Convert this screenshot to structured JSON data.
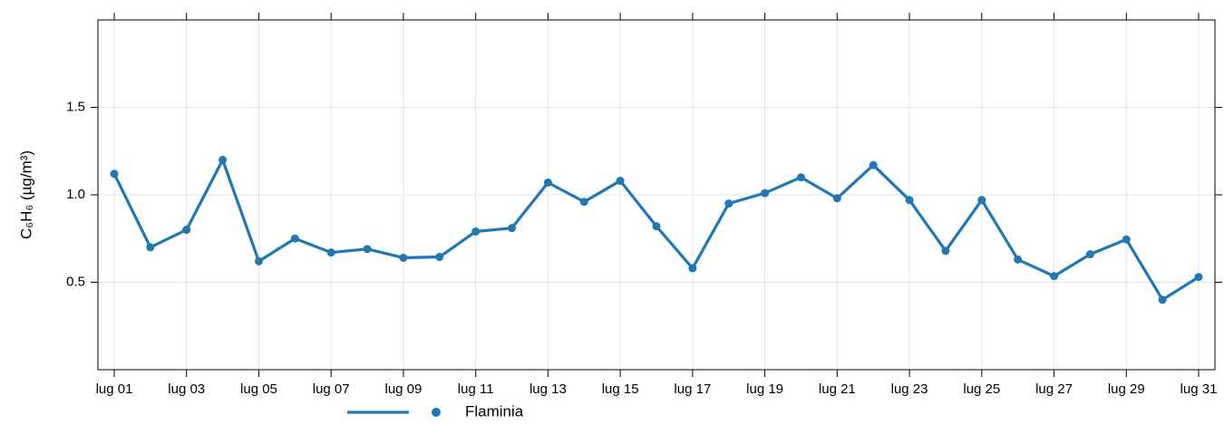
{
  "chart_data": {
    "type": "line",
    "y_label": "C₆H₆ (µg/m³)",
    "categories": [
      "lug 01",
      null,
      "lug 03",
      null,
      "lug 05",
      null,
      "lug 07",
      null,
      "lug 09",
      null,
      "lug 11",
      null,
      "lug 13",
      null,
      "lug 15",
      null,
      "lug 17",
      null,
      "lug 19",
      null,
      "lug 21",
      null,
      "lug 23",
      null,
      "lug 25",
      null,
      "lug 27",
      null,
      "lug 29",
      null,
      "lug 31"
    ],
    "series": [
      {
        "name": "Flaminia",
        "color": "#1f77b4",
        "values": [
          1.12,
          0.7,
          0.8,
          1.2,
          0.62,
          0.75,
          0.67,
          0.69,
          0.64,
          0.645,
          0.79,
          0.81,
          1.07,
          0.96,
          1.08,
          0.82,
          0.58,
          0.95,
          1.01,
          1.1,
          0.98,
          1.17,
          0.97,
          0.68,
          0.97,
          0.63,
          0.535,
          0.66,
          0.745,
          0.4,
          0.53
        ]
      }
    ],
    "ylim": [
      0,
      2.0
    ],
    "yticks": [
      0.5,
      {
        "value": 1,
        "label": "1.0"
      },
      1.5
    ],
    "grid": true,
    "legend": "bottom"
  }
}
